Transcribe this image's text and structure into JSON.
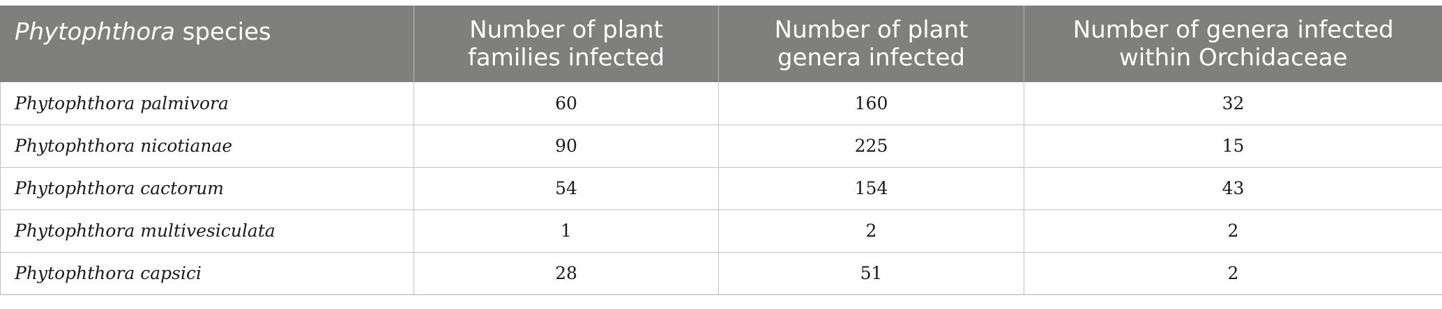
{
  "table": {
    "headers": [
      {
        "italic": "Phytophthora",
        "rest": " species"
      },
      {
        "line1": "Number of plant",
        "line2": "families infected"
      },
      {
        "line1": "Number of plant",
        "line2": "genera infected"
      },
      {
        "line1": "Number of genera infected",
        "line2": "within Orchidaceae"
      }
    ],
    "rows": [
      {
        "species": "Phytophthora palmivora",
        "families": "60",
        "genera": "160",
        "orchid_genera": "32"
      },
      {
        "species": "Phytophthora nicotianae",
        "families": "90",
        "genera": "225",
        "orchid_genera": "15"
      },
      {
        "species": "Phytophthora cactorum",
        "families": "54",
        "genera": "154",
        "orchid_genera": "43"
      },
      {
        "species": "Phytophthora multivesiculata",
        "families": "1",
        "genera": "2",
        "orchid_genera": "2"
      },
      {
        "species": "Phytophthora capsici",
        "families": "28",
        "genera": "51",
        "orchid_genera": "2"
      }
    ]
  },
  "colors": {
    "header_bg": "#7f807e",
    "header_text": "#ffffff",
    "grid": "#c4c4c4"
  }
}
